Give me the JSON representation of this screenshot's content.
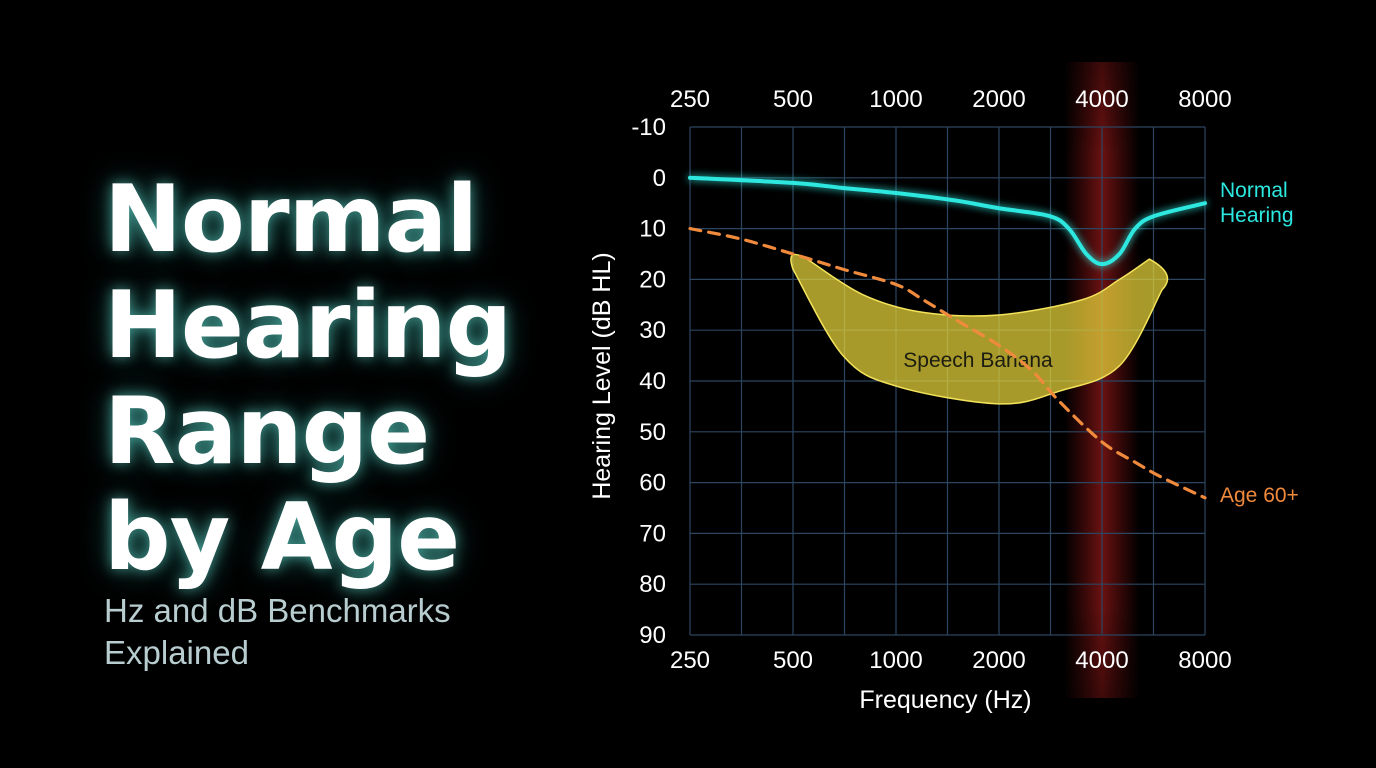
{
  "hero": {
    "title_lines": [
      "Normal",
      "Hearing",
      "Range",
      "by Age"
    ],
    "subtitle_lines": [
      "Hz and dB Benchmarks",
      "Explained"
    ]
  },
  "chart_data": {
    "type": "line",
    "xlabel": "Frequency (Hz)",
    "ylabel": "Hearing Level (dB HL)",
    "x_scale": "log2",
    "x_ticks": [
      250,
      500,
      1000,
      2000,
      4000,
      8000
    ],
    "x_tick_labels": [
      "250",
      "500",
      "1000",
      "2000",
      "4000",
      "8000"
    ],
    "y_ticks": [
      -10,
      0,
      10,
      20,
      30,
      40,
      50,
      60,
      70,
      80,
      90
    ],
    "y_tick_labels": [
      "-10",
      "0",
      "10",
      "20",
      "30",
      "40",
      "50",
      "60",
      "70",
      "80",
      "90"
    ],
    "xlim": [
      250,
      8000
    ],
    "ylim": [
      -10,
      90
    ],
    "y_inverted": true,
    "grid": true,
    "highlight_band": {
      "x": 4000
    },
    "series": [
      {
        "name": "Normal Hearing",
        "color": "#2de8e0",
        "style": "solid",
        "x": [
          250,
          500,
          700,
          1000,
          1500,
          2000,
          2800,
          3200,
          3600,
          4000,
          4500,
          5000,
          5700,
          8000
        ],
        "y": [
          0,
          1,
          2,
          3,
          4.5,
          6,
          7.5,
          10,
          15,
          17,
          15,
          10,
          7.5,
          5
        ]
      },
      {
        "name": "Age 60+",
        "color": "#f08a3c",
        "style": "dashed",
        "x": [
          250,
          350,
          500,
          700,
          1000,
          1200,
          1500,
          2000,
          2500,
          3000,
          4000,
          5000,
          6000,
          8000
        ],
        "y": [
          10,
          12,
          15,
          18,
          21,
          24,
          28,
          33,
          38,
          44,
          52,
          56,
          59,
          63
        ]
      }
    ],
    "region": {
      "name": "Speech Banana",
      "color": "#e8d53a",
      "upper_x": [
        550,
        800,
        1200,
        2000,
        3500,
        4500,
        5500
      ],
      "upper_y": [
        16,
        23,
        26.5,
        27,
        24,
        20,
        16
      ],
      "lower_x": [
        500,
        700,
        1000,
        2000,
        3000,
        4500,
        6000
      ],
      "lower_y": [
        18,
        35,
        41,
        44.5,
        42,
        37,
        22
      ]
    }
  }
}
